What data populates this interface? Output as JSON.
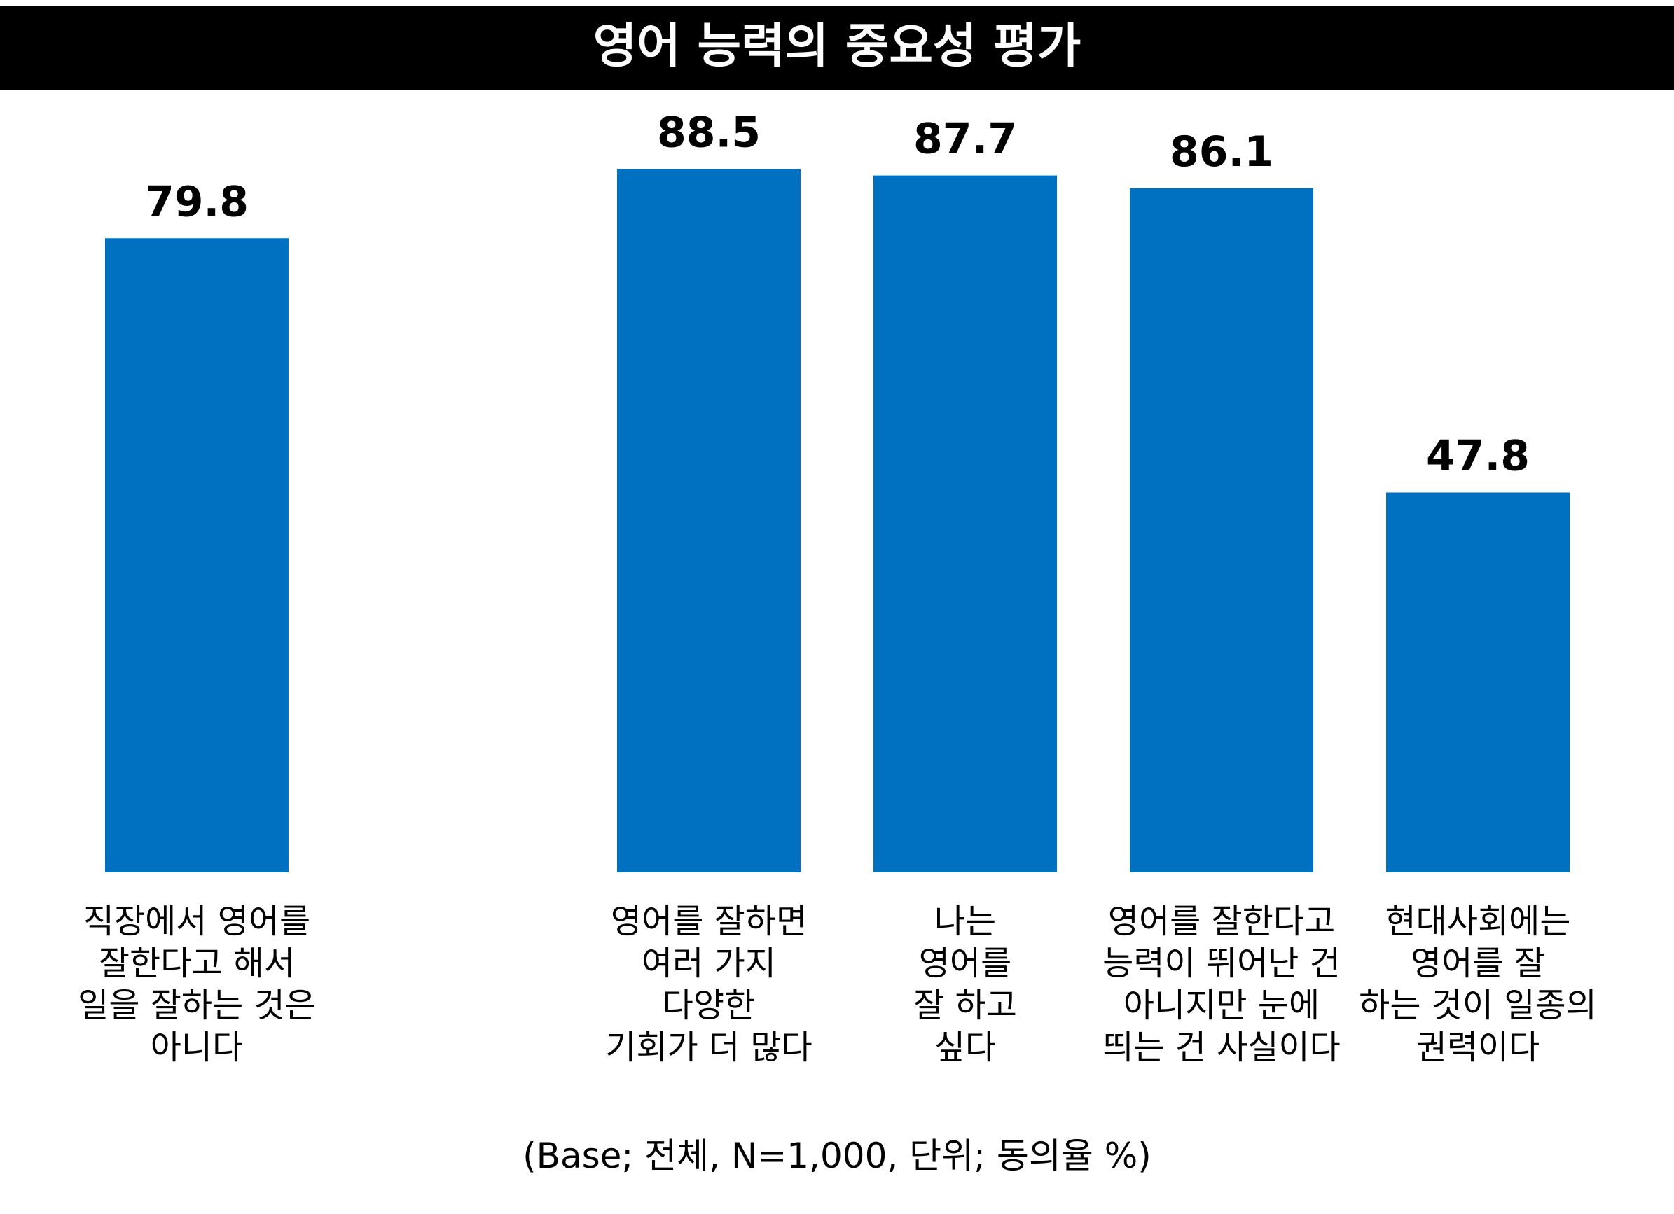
{
  "chart_data": {
    "type": "bar",
    "title": "영어 능력의 중요성 평가",
    "categories": [
      [
        "직장에서 영어를",
        "잘한다고 해서",
        "일을 잘하는 것은",
        "아니다"
      ],
      [
        "영어를 잘하면",
        "여러 가지",
        "다양한",
        "기회가 더 많다"
      ],
      [
        "나는",
        "영어를",
        "잘 하고",
        "싶다"
      ],
      [
        "영어를 잘한다고",
        "능력이 뛰어난 건",
        "아니지만 눈에",
        "띄는 건 사실이다"
      ],
      [
        "현대사회에는",
        "영어를 잘",
        "하는 것이 일종의",
        "권력이다"
      ]
    ],
    "values": [
      79.8,
      88.5,
      87.7,
      86.1,
      47.8
    ],
    "value_labels": [
      "79.8",
      "88.5",
      "87.7",
      "86.1",
      "47.8"
    ],
    "ylim": [
      0,
      100
    ],
    "grid": false,
    "footnote": "(Base; 전체, N=1,000, 단위; 동의율 %)",
    "colors": {
      "bar": "#0070C0",
      "title_bg": "#000000",
      "title_text": "#ffffff",
      "text": "#000000"
    }
  }
}
